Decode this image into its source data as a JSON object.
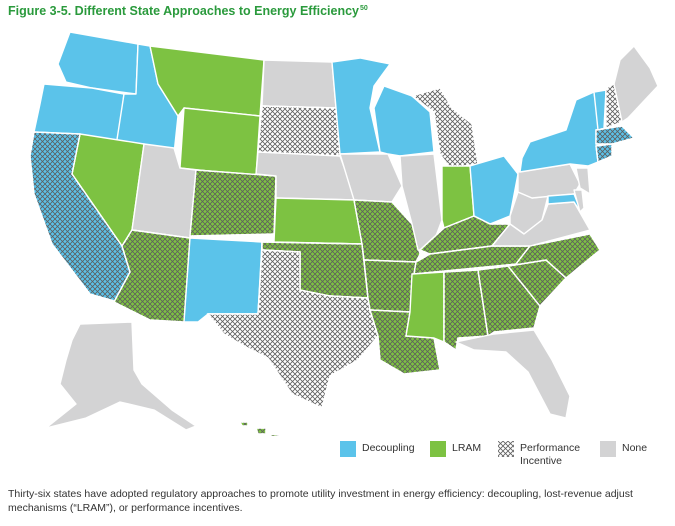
{
  "figure": {
    "title": "Figure 3-5. Different State Approaches to Energy Efficiency",
    "title_superscript": "50"
  },
  "colors": {
    "decoupling": "#5bc3ea",
    "lram": "#7dc242",
    "performance": "#9b9b9b",
    "none": "#d3d3d4"
  },
  "legend": [
    {
      "key": "decoupling",
      "label": "Decoupling"
    },
    {
      "key": "lram",
      "label": "LRAM"
    },
    {
      "key": "performance",
      "label": "Performance Incentive"
    },
    {
      "key": "none",
      "label": "None"
    }
  ],
  "states": {
    "WA": "decoupling",
    "OR": "decoupling",
    "ID": "decoupling",
    "MN": "decoupling",
    "WI": "decoupling",
    "OH": "decoupling",
    "NY": "decoupling",
    "NM": "decoupling",
    "MD": "decoupling",
    "CA": "decoupling+performance",
    "MT": "lram",
    "WY": "lram",
    "NV": "lram",
    "KS": "lram",
    "IN": "lram",
    "MS": "lram",
    "AZ": "lram+performance",
    "CO": "lram+performance",
    "OK": "lram+performance",
    "MO": "lram+performance",
    "AR": "lram+performance",
    "LA": "lram+performance",
    "KY": "lram+performance",
    "TN": "lram+performance",
    "AL": "lram+performance",
    "GA": "lram+performance",
    "SC": "lram+performance",
    "NC": "lram+performance",
    "HI": "lram+performance",
    "CT": "decoupling+performance",
    "MA": "decoupling+performance",
    "SD": "performance",
    "TX": "performance",
    "MI": "performance",
    "AK": "none",
    "ND": "none",
    "NE": "none",
    "IA": "none",
    "IL": "none",
    "UT": "none",
    "PA": "none",
    "WV": "none",
    "VA": "none",
    "FL": "none",
    "ME": "none",
    "NH": "performance",
    "VT": "decoupling",
    "NJ": "none",
    "DE": "none"
  },
  "caption": "Thirty-six states have adopted regulatory approaches to promote utility investment in energy efficiency: decoupling, lost-revenue adjust mechanisms (“LRAM”), or performance incentives."
}
